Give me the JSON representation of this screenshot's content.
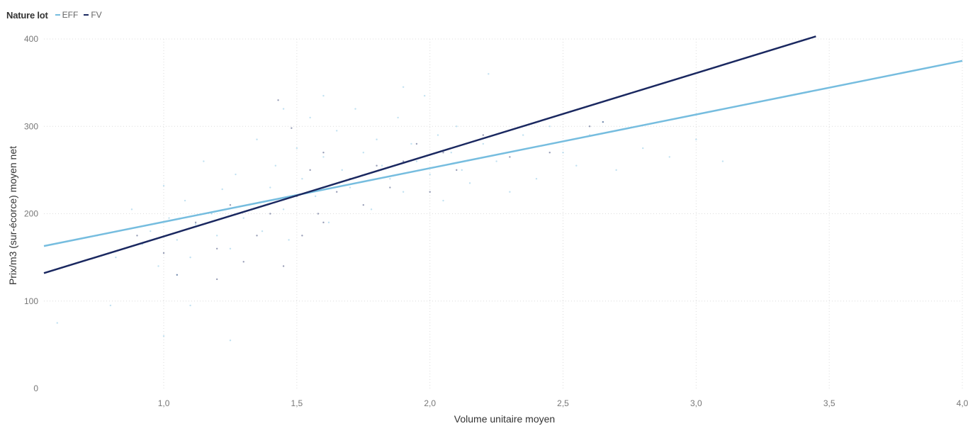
{
  "legend": {
    "title": "Nature lot",
    "items": [
      {
        "label": "EFF",
        "color": "#76BDDF"
      },
      {
        "label": "FV",
        "color": "#1A2860"
      }
    ]
  },
  "chart_data": {
    "type": "scatter",
    "xlabel": "Volume unitaire moyen",
    "ylabel": "Prix/m3 (sur-écorce) moyen net",
    "xlim": [
      0.55,
      4.0
    ],
    "ylim": [
      0,
      400
    ],
    "x_ticks": [
      1.0,
      1.5,
      2.0,
      2.5,
      3.0,
      3.5,
      4.0
    ],
    "x_tick_labels": [
      "1,0",
      "1,5",
      "2,0",
      "2,5",
      "3,0",
      "3,5",
      "4,0"
    ],
    "y_ticks": [
      0,
      100,
      200,
      300,
      400
    ],
    "y_tick_labels": [
      "0",
      "100",
      "200",
      "300",
      "400"
    ],
    "grid": true,
    "legend_position": "top-left",
    "series": [
      {
        "name": "EFF",
        "color": "#76BDDF",
        "trend_line": [
          [
            0.55,
            163
          ],
          [
            4.0,
            375
          ]
        ],
        "points": [
          [
            0.75,
            175
          ],
          [
            0.82,
            150
          ],
          [
            0.88,
            205
          ],
          [
            0.92,
            165
          ],
          [
            0.95,
            180
          ],
          [
            0.98,
            140
          ],
          [
            1.0,
            232
          ],
          [
            1.02,
            195
          ],
          [
            1.05,
            170
          ],
          [
            1.08,
            215
          ],
          [
            1.1,
            150
          ],
          [
            1.12,
            188
          ],
          [
            1.15,
            260
          ],
          [
            1.18,
            200
          ],
          [
            1.2,
            175
          ],
          [
            1.22,
            228
          ],
          [
            1.25,
            160
          ],
          [
            1.27,
            245
          ],
          [
            1.3,
            195
          ],
          [
            1.32,
            210
          ],
          [
            1.35,
            285
          ],
          [
            1.37,
            180
          ],
          [
            1.4,
            230
          ],
          [
            1.42,
            255
          ],
          [
            1.45,
            205
          ],
          [
            1.47,
            170
          ],
          [
            1.5,
            275
          ],
          [
            1.52,
            240
          ],
          [
            1.55,
            310
          ],
          [
            1.57,
            220
          ],
          [
            1.6,
            265
          ],
          [
            1.62,
            190
          ],
          [
            1.65,
            295
          ],
          [
            1.67,
            250
          ],
          [
            1.7,
            230
          ],
          [
            1.72,
            320
          ],
          [
            1.75,
            270
          ],
          [
            1.78,
            205
          ],
          [
            1.8,
            285
          ],
          [
            1.82,
            255
          ],
          [
            1.85,
            240
          ],
          [
            1.88,
            310
          ],
          [
            1.9,
            225
          ],
          [
            1.93,
            280
          ],
          [
            1.95,
            260
          ],
          [
            1.98,
            335
          ],
          [
            2.0,
            245
          ],
          [
            2.03,
            290
          ],
          [
            2.05,
            215
          ],
          [
            2.08,
            270
          ],
          [
            2.1,
            300
          ],
          [
            2.12,
            250
          ],
          [
            2.15,
            235
          ],
          [
            2.2,
            280
          ],
          [
            2.22,
            360
          ],
          [
            2.25,
            260
          ],
          [
            2.3,
            225
          ],
          [
            2.35,
            290
          ],
          [
            2.4,
            240
          ],
          [
            2.45,
            300
          ],
          [
            2.5,
            270
          ],
          [
            2.55,
            255
          ],
          [
            2.6,
            290
          ],
          [
            2.65,
            305
          ],
          [
            2.7,
            250
          ],
          [
            2.8,
            275
          ],
          [
            2.9,
            265
          ],
          [
            3.0,
            285
          ],
          [
            3.1,
            260
          ],
          [
            0.6,
            75
          ],
          [
            0.8,
            95
          ],
          [
            1.0,
            60
          ],
          [
            1.05,
            130
          ],
          [
            1.1,
            95
          ],
          [
            1.25,
            55
          ],
          [
            1.45,
            320
          ],
          [
            1.6,
            335
          ],
          [
            1.9,
            345
          ]
        ]
      },
      {
        "name": "FV",
        "color": "#1A2860",
        "trend_line": [
          [
            0.55,
            132
          ],
          [
            3.45,
            403
          ]
        ],
        "points": [
          [
            0.9,
            175
          ],
          [
            1.0,
            155
          ],
          [
            1.05,
            130
          ],
          [
            1.12,
            190
          ],
          [
            1.2,
            160
          ],
          [
            1.25,
            210
          ],
          [
            1.3,
            145
          ],
          [
            1.35,
            175
          ],
          [
            1.4,
            200
          ],
          [
            1.43,
            330
          ],
          [
            1.45,
            140
          ],
          [
            1.48,
            298
          ],
          [
            1.5,
            220
          ],
          [
            1.52,
            175
          ],
          [
            1.55,
            250
          ],
          [
            1.58,
            200
          ],
          [
            1.6,
            270
          ],
          [
            1.65,
            225
          ],
          [
            1.7,
            240
          ],
          [
            1.75,
            210
          ],
          [
            1.8,
            255
          ],
          [
            1.85,
            230
          ],
          [
            1.9,
            260
          ],
          [
            1.95,
            280
          ],
          [
            2.0,
            225
          ],
          [
            2.05,
            270
          ],
          [
            2.1,
            250
          ],
          [
            2.2,
            290
          ],
          [
            2.3,
            265
          ],
          [
            2.45,
            270
          ],
          [
            2.6,
            300
          ],
          [
            2.65,
            305
          ],
          [
            1.2,
            125
          ],
          [
            1.6,
            190
          ]
        ]
      }
    ]
  }
}
